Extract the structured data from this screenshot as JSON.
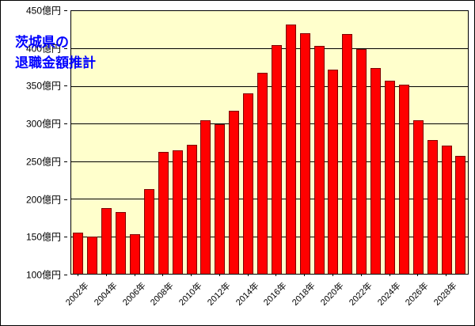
{
  "title": {
    "line1": "茨城県の",
    "line2": "退職金額推計"
  },
  "colors": {
    "plot_background": "#ffffcc",
    "bar_fill": "#ff0000",
    "bar_border": "#7f0000",
    "title_text": "#0000ff",
    "gridline": "#000000"
  },
  "chart_data": {
    "type": "bar",
    "title": "茨城県の退職金額推計",
    "unit": "億円",
    "x": [
      2002,
      2003,
      2004,
      2005,
      2006,
      2007,
      2008,
      2009,
      2010,
      2011,
      2012,
      2013,
      2014,
      2015,
      2016,
      2017,
      2018,
      2019,
      2020,
      2021,
      2022,
      2023,
      2024,
      2025,
      2026,
      2027,
      2028,
      2029
    ],
    "values": [
      155,
      150,
      187,
      182,
      153,
      213,
      262,
      265,
      272,
      305,
      299,
      317,
      340,
      368,
      405,
      432,
      421,
      404,
      372,
      419,
      399,
      374,
      357,
      352,
      305,
      278,
      271,
      257
    ],
    "ylim": [
      100,
      450
    ],
    "y_tick_step": 50,
    "y_tick_labels": [
      "100億円",
      "150億円",
      "200億円",
      "250億円",
      "300億円",
      "350億円",
      "400億円",
      "450億円"
    ],
    "x_tick_labels": [
      "2002年",
      "2004年",
      "2006年",
      "2008年",
      "2010年",
      "2012年",
      "2014年",
      "2016年",
      "2018年",
      "2020年",
      "2022年",
      "2024年",
      "2026年",
      "2028年"
    ],
    "x_label_every": 2,
    "grid": true,
    "legend": "none"
  }
}
